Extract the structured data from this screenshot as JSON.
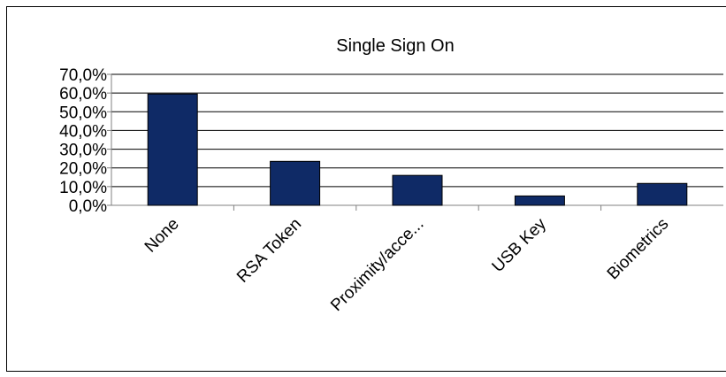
{
  "chart_data": {
    "type": "bar",
    "title": "Single Sign On",
    "xlabel": "",
    "ylabel": "",
    "categories": [
      "None",
      "RSA Token",
      "Proximity/acce...",
      "USB Key",
      "Biometrics"
    ],
    "values": [
      0.595,
      0.235,
      0.16,
      0.05,
      0.117
    ],
    "ylim": [
      0,
      0.7
    ],
    "yticks": [
      0,
      0.1,
      0.2,
      0.3,
      0.4,
      0.5,
      0.6,
      0.7
    ],
    "ytick_labels": [
      "0,0%",
      "10,0%",
      "20,0%",
      "30,0%",
      "40,0%",
      "50,0%",
      "60,0%",
      "70,0%"
    ],
    "grid": true,
    "legend": "none",
    "colors": {
      "bar": "#0f2a66",
      "bar_stroke": "#000000",
      "grid": "#000000",
      "axis": "#808080"
    }
  }
}
